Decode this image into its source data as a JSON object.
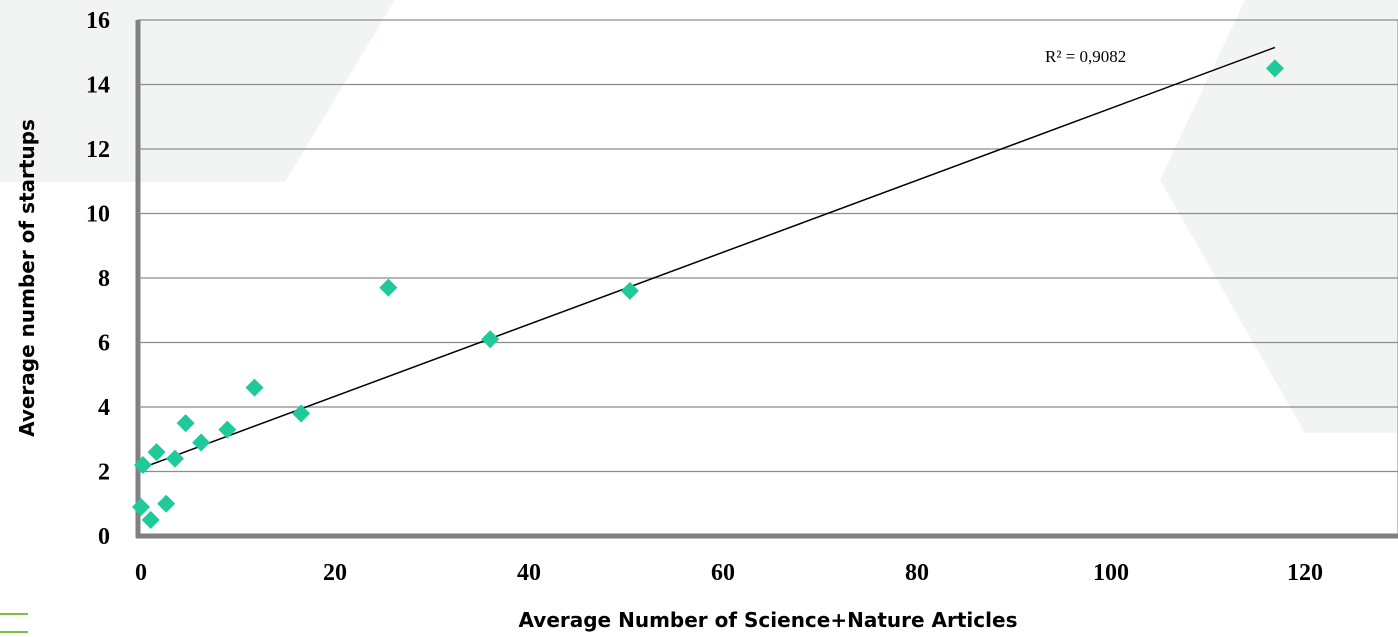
{
  "chart_data": {
    "type": "scatter",
    "xlabel": "Average Number of Science+Nature Articles",
    "ylabel": "Average number of startups",
    "xlim": [
      0,
      125
    ],
    "ylim": [
      0,
      16
    ],
    "x_ticks": [
      0,
      20,
      40,
      60,
      80,
      100,
      120
    ],
    "y_ticks": [
      0,
      2,
      4,
      6,
      8,
      10,
      12,
      14,
      16
    ],
    "grid": "horizontal",
    "legend": "none",
    "marker": "diamond",
    "marker_color": "#1fc99a",
    "points": [
      {
        "x": 0.0,
        "y": 0.9
      },
      {
        "x": 0.2,
        "y": 2.2
      },
      {
        "x": 1.0,
        "y": 0.5
      },
      {
        "x": 1.6,
        "y": 2.6
      },
      {
        "x": 2.6,
        "y": 1.0
      },
      {
        "x": 3.5,
        "y": 2.4
      },
      {
        "x": 4.6,
        "y": 3.5
      },
      {
        "x": 6.2,
        "y": 2.9
      },
      {
        "x": 8.9,
        "y": 3.3
      },
      {
        "x": 11.7,
        "y": 4.6
      },
      {
        "x": 16.5,
        "y": 3.8
      },
      {
        "x": 25.5,
        "y": 7.7
      },
      {
        "x": 36.0,
        "y": 6.1
      },
      {
        "x": 50.4,
        "y": 7.6
      },
      {
        "x": 116.9,
        "y": 14.5
      }
    ],
    "trendline": {
      "type": "linear",
      "x": [
        0,
        116.9
      ],
      "y": [
        2.1,
        15.15
      ],
      "color": "#000000"
    },
    "annotation": "R² = 0,9082"
  }
}
